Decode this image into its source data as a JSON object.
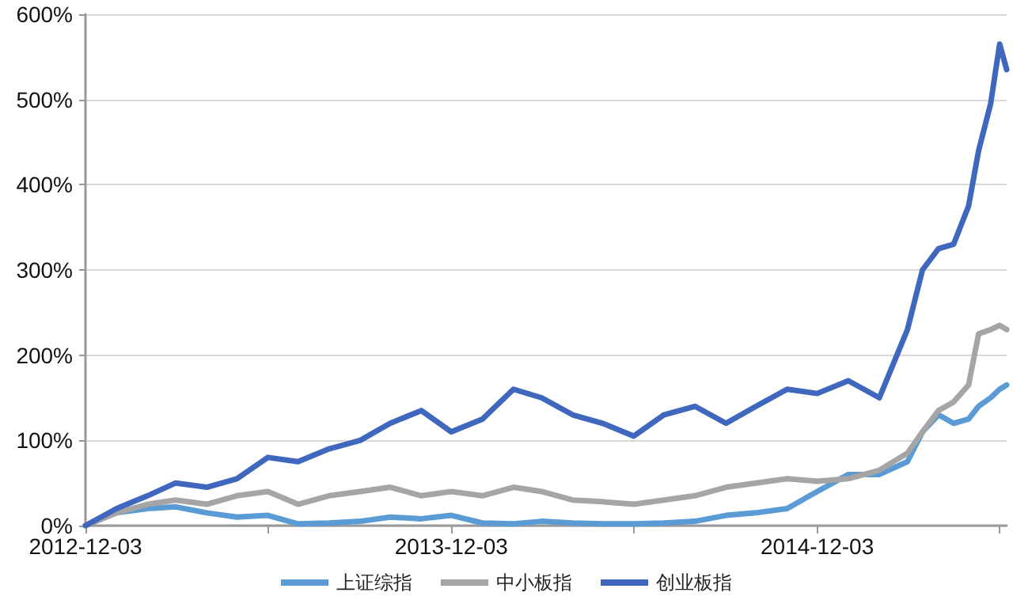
{
  "chart_data": {
    "type": "line",
    "x": [
      "2012-12-03",
      "2013-01-03",
      "2013-02-03",
      "2013-03-03",
      "2013-04-03",
      "2013-05-03",
      "2013-06-03",
      "2013-07-03",
      "2013-08-03",
      "2013-09-03",
      "2013-10-03",
      "2013-11-03",
      "2013-12-03",
      "2014-01-03",
      "2014-02-03",
      "2014-03-03",
      "2014-04-03",
      "2014-05-03",
      "2014-06-03",
      "2014-07-03",
      "2014-08-03",
      "2014-09-03",
      "2014-10-03",
      "2014-11-03",
      "2014-12-03",
      "2015-01-03",
      "2015-02-03",
      "2015-03-03",
      "2015-03-18",
      "2015-04-03",
      "2015-04-18",
      "2015-05-03",
      "2015-05-13",
      "2015-05-25",
      "2015-06-03",
      "2015-06-10"
    ],
    "series": [
      {
        "name": "上证综指",
        "color": "#5b9bd5",
        "values": [
          0,
          15,
          20,
          22,
          15,
          10,
          12,
          2,
          3,
          5,
          10,
          8,
          12,
          3,
          2,
          5,
          3,
          2,
          2,
          3,
          5,
          12,
          15,
          20,
          40,
          60,
          60,
          75,
          110,
          130,
          120,
          125,
          140,
          150,
          160,
          165
        ]
      },
      {
        "name": "中小板指",
        "color": "#a5a5a5",
        "values": [
          0,
          15,
          25,
          30,
          25,
          35,
          40,
          25,
          35,
          40,
          45,
          35,
          40,
          35,
          45,
          40,
          30,
          28,
          25,
          30,
          35,
          45,
          50,
          55,
          52,
          55,
          65,
          85,
          110,
          135,
          145,
          165,
          225,
          230,
          235,
          230
        ]
      },
      {
        "name": "创业板指",
        "color": "#3f67bd",
        "values": [
          0,
          20,
          35,
          50,
          45,
          55,
          80,
          75,
          90,
          100,
          120,
          135,
          110,
          125,
          160,
          150,
          130,
          120,
          105,
          130,
          140,
          120,
          140,
          160,
          155,
          170,
          150,
          230,
          300,
          325,
          330,
          375,
          440,
          495,
          565,
          535
        ]
      }
    ],
    "xlim": [
      "2012-12-03",
      "2015-06-10"
    ],
    "xticks": [
      {
        "value": "2012-12-03",
        "label": "2012-12-03"
      },
      {
        "value": "2013-06-03",
        "label": null
      },
      {
        "value": "2013-12-03",
        "label": "2013-12-03"
      },
      {
        "value": "2014-06-03",
        "label": null
      },
      {
        "value": "2014-12-03",
        "label": "2014-12-03"
      },
      {
        "value": "2015-06-03",
        "label": null
      }
    ],
    "ylim": [
      0,
      600
    ],
    "yticks": [
      {
        "value": 0,
        "label": "0%"
      },
      {
        "value": 100,
        "label": "100%"
      },
      {
        "value": 200,
        "label": "200%"
      },
      {
        "value": 300,
        "label": "300%"
      },
      {
        "value": 400,
        "label": "400%"
      },
      {
        "value": 500,
        "label": "500%"
      },
      {
        "value": 600,
        "label": "600%"
      }
    ],
    "grid": "y",
    "legend": "bottom",
    "marker": "none",
    "line_style": "solid"
  }
}
